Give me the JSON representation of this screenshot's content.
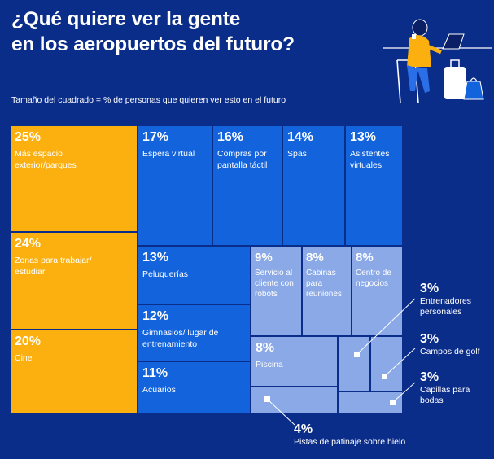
{
  "title_line1": "¿Qué quiere ver la gente",
  "title_line2": "en los aeropuertos del futuro?",
  "subtitle": "Tamaño del cuadrado = % de personas que quieren ver esto en el futuro",
  "colors": {
    "background": "#0b2d8a",
    "yellow": "#fbb00f",
    "blue": "#1263dc",
    "light": "#8aa9e6"
  },
  "chart_data": {
    "type": "treemap",
    "unit": "%",
    "items": [
      {
        "pct": "25%",
        "value": 25,
        "label": "Más espacio exterior/parques"
      },
      {
        "pct": "24%",
        "value": 24,
        "label": "Zonas para trabajar/ estudiar"
      },
      {
        "pct": "20%",
        "value": 20,
        "label": "Cine"
      },
      {
        "pct": "17%",
        "value": 17,
        "label": "Espera virtual"
      },
      {
        "pct": "16%",
        "value": 16,
        "label": "Compras por pantalla táctil"
      },
      {
        "pct": "14%",
        "value": 14,
        "label": "Spas"
      },
      {
        "pct": "13%",
        "value": 13,
        "label": "Asistentes virtuales"
      },
      {
        "pct": "13%",
        "value": 13,
        "label": "Peluquerías"
      },
      {
        "pct": "12%",
        "value": 12,
        "label": "Gimnasios/ lugar de entrenamiento"
      },
      {
        "pct": "11%",
        "value": 11,
        "label": "Acuarios"
      },
      {
        "pct": "9%",
        "value": 9,
        "label": "Servicio al cliente con robots"
      },
      {
        "pct": "8%",
        "value": 8,
        "label": "Cabinas para reuniones"
      },
      {
        "pct": "8%",
        "value": 8,
        "label": "Centro de negocios"
      },
      {
        "pct": "8%",
        "value": 8,
        "label": "Piscina"
      },
      {
        "pct": "3%",
        "value": 3,
        "label": "Entrenadores personales"
      },
      {
        "pct": "3%",
        "value": 3,
        "label": "Campos de golf"
      },
      {
        "pct": "3%",
        "value": 3,
        "label": "Capillas para bodas"
      },
      {
        "pct": "4%",
        "value": 4,
        "label": "Pistas de patinaje sobre hielo"
      }
    ]
  }
}
